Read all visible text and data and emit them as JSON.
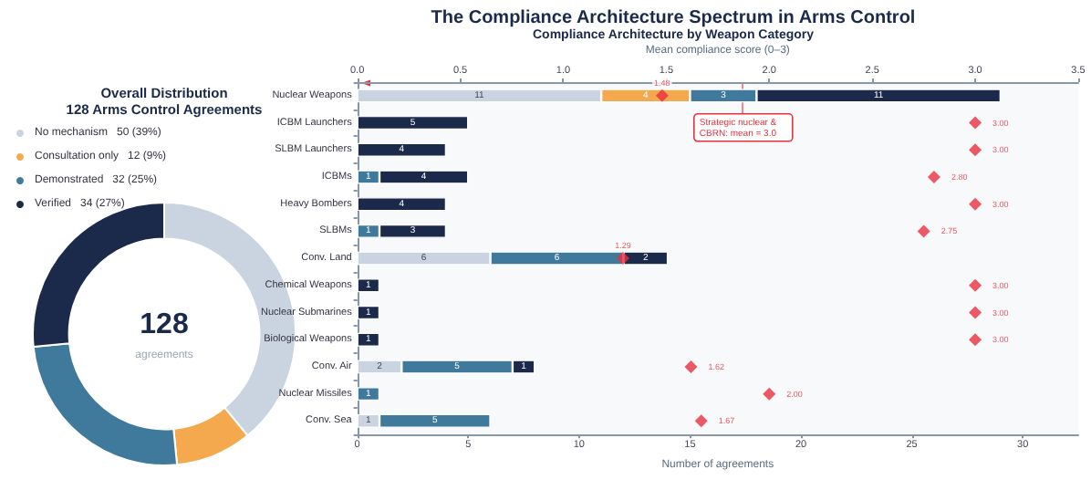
{
  "chart_data": [
    {
      "type": "donut",
      "title": "Overall Distribution",
      "subtitle": "128 Arms Control Agreements",
      "categories": [
        "No mechanism",
        "Consultation only",
        "Demonstrated",
        "Verified"
      ],
      "values": [
        50,
        12,
        32,
        34
      ],
      "value_labels": [
        "50 (39%)",
        "12 (9%)",
        "32 (25%)",
        "34 (27%)"
      ],
      "colors": [
        "#c9d4e0",
        "#f4a94f",
        "#3f7a9c",
        "#1b2a4a"
      ],
      "legend": "top left",
      "annotations": [
        "128",
        "agreements"
      ]
    },
    {
      "type": "bar",
      "orientation": "horizontal",
      "stacked": true,
      "title": "The Compliance Architecture Spectrum in Arms Control",
      "subtitle": "Compliance Architecture by Weapon Category",
      "xlabel": "Number of agreements",
      "x2label": "Mean compliance score (0–3)",
      "categories": [
        "Nuclear Weapons",
        "ICBM Launchers",
        "SLBM Launchers",
        "ICBMs",
        "Heavy Bombers",
        "SLBMs",
        "Conv. Land",
        "Chemical Weapons",
        "Nuclear Submarines",
        "Biological Weapons",
        "Conv. Air",
        "Nuclear Missiles",
        "Conv. Sea"
      ],
      "series": [
        {
          "color": "#c9d4e0",
          "values": [
            11,
            null,
            null,
            null,
            null,
            null,
            6,
            null,
            null,
            null,
            2,
            null,
            1
          ]
        },
        {
          "color": "#f4a94f",
          "values": [
            4,
            null,
            null,
            null,
            null,
            null,
            null,
            null,
            null,
            null,
            null,
            null,
            null
          ]
        },
        {
          "color": "#3f7a9c",
          "values": [
            3,
            null,
            null,
            1,
            null,
            1,
            6,
            null,
            null,
            null,
            5,
            1,
            5
          ]
        },
        {
          "color": "#1b2a4a",
          "values": [
            11,
            5,
            4,
            4,
            4,
            3,
            2,
            1,
            1,
            1,
            1,
            null,
            null
          ]
        },
        {
          "type": "scatter",
          "axis": "x2",
          "marker": "diamond",
          "color": "#e8303f",
          "values": [
            1.48,
            3.0,
            3.0,
            2.8,
            3.0,
            2.75,
            1.29,
            3.0,
            3.0,
            3.0,
            1.62,
            2.0,
            1.67
          ],
          "value_labels": [
            "1.48",
            "3.00",
            "3.00",
            "2.80",
            "3.00",
            "2.75",
            "1.29",
            "3.00",
            "3.00",
            "3.00",
            "1.62",
            "2.00",
            "1.67"
          ]
        }
      ],
      "data_labels": true,
      "xlim": [
        0,
        32.5
      ],
      "xticks": [
        0,
        5,
        10,
        15,
        20,
        25,
        30
      ],
      "x2lim": [
        0,
        3.5
      ],
      "x2ticks": [
        {
          "value": 0,
          "label": "0.0"
        },
        {
          "value": 0.5,
          "label": "0.5"
        },
        {
          "value": 1,
          "label": "1.0"
        },
        {
          "value": 1.5,
          "label": "1.5"
        },
        {
          "value": 2,
          "label": "2.0"
        },
        {
          "value": 2.5,
          "label": "2.5"
        },
        {
          "value": 3,
          "label": "3.0"
        },
        {
          "value": 3.5,
          "label": "3.5"
        }
      ],
      "grid": false,
      "annotations": [
        "Strategic nuclear &\nCBRN: mean = 3.0"
      ]
    }
  ]
}
